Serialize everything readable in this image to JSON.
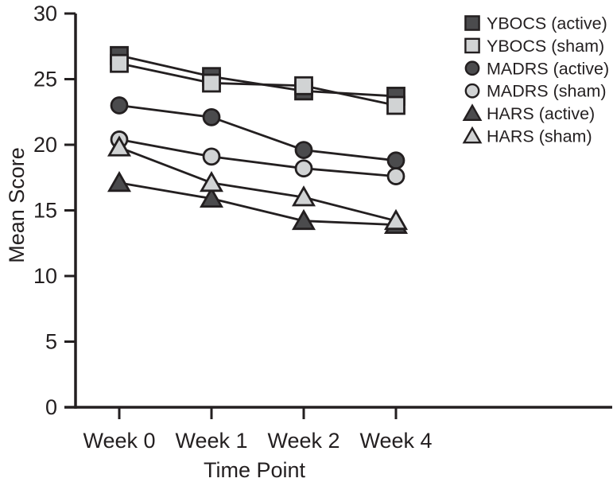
{
  "figure": {
    "description": "Line chart of mean clinical scale scores over treatment time points"
  },
  "chart_data": {
    "type": "line",
    "title": "",
    "xlabel": "Time Point",
    "ylabel": "Mean Score",
    "categories": [
      "Week 0",
      "Week 1",
      "Week 2",
      "Week 4"
    ],
    "yticks": [
      0,
      5,
      10,
      15,
      20,
      25,
      30
    ],
    "ylim": [
      0,
      30
    ],
    "grid": false,
    "legend_position": "top-right",
    "series": [
      {
        "name": "YBOCS (active)",
        "marker": "square",
        "shade": "dark",
        "values": [
          26.8,
          25.2,
          24.1,
          23.7
        ]
      },
      {
        "name": "YBOCS (sham)",
        "marker": "square",
        "shade": "light",
        "values": [
          26.2,
          24.7,
          24.5,
          23.0
        ]
      },
      {
        "name": "MADRS (active)",
        "marker": "circle",
        "shade": "dark",
        "values": [
          23.0,
          22.1,
          19.6,
          18.8
        ]
      },
      {
        "name": "MADRS (sham)",
        "marker": "circle",
        "shade": "light",
        "values": [
          20.4,
          19.1,
          18.2,
          17.6
        ]
      },
      {
        "name": "HARS (active)",
        "marker": "triangle",
        "shade": "dark",
        "values": [
          17.1,
          15.9,
          14.2,
          13.9
        ]
      },
      {
        "name": "HARS (sham)",
        "marker": "triangle",
        "shade": "light",
        "values": [
          19.8,
          17.1,
          16.0,
          14.2
        ]
      }
    ],
    "colors": {
      "dark": "#4b4b4d",
      "light": "#d1d3d4",
      "line": "#231f20",
      "background": "#ffffff"
    }
  }
}
